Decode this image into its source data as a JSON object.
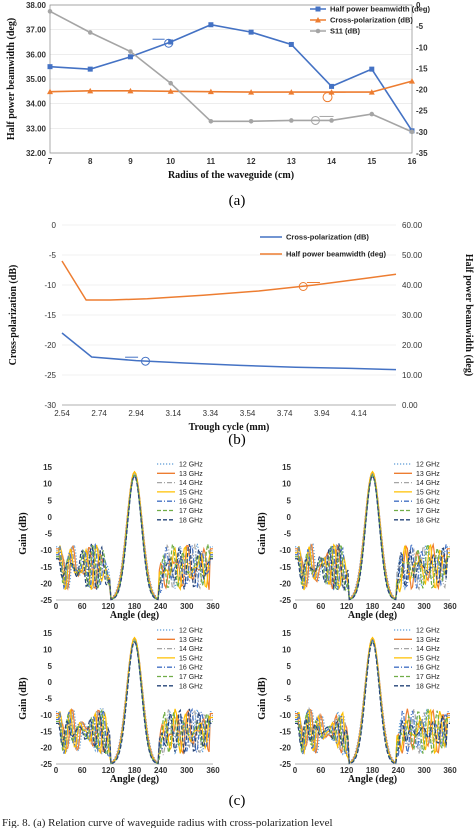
{
  "figure": {
    "panel_labels": [
      "(a)",
      "(b)",
      "(c)"
    ],
    "caption": "Fig. 8.   (a) Relation curve of waveguide radius with cross-polarization level"
  },
  "chart_data": [
    {
      "type": "line",
      "xlabel": "Radius of the waveguide (cm)",
      "ylabel": "Half power beamwidth (deg)",
      "x": [
        7,
        8,
        9,
        10,
        11,
        12,
        13,
        14,
        15,
        16
      ],
      "xticks": [
        "7",
        "8",
        "9",
        "10",
        "11",
        "12",
        "13",
        "14",
        "15",
        "16"
      ],
      "ylim": [
        32,
        38
      ],
      "yticks": [
        "32.00",
        "33.00",
        "34.00",
        "35.00",
        "36.00",
        "37.00",
        "38.00"
      ],
      "y2lim": [
        -35,
        0
      ],
      "y2ticks": [
        "0",
        "-5",
        "-10",
        "-15",
        "-20",
        "-25",
        "-30",
        "-35"
      ],
      "legend_position": "top-right",
      "series": [
        {
          "name": "Half power beamwidth (deg)",
          "axis": "left",
          "color": "#4472c4",
          "marker": "square",
          "values": [
            35.5,
            35.4,
            35.9,
            36.5,
            37.2,
            36.9,
            36.4,
            34.7,
            35.4,
            32.9
          ]
        },
        {
          "name": "Cross-polarization (dB)",
          "axis": "right",
          "color": "#ed7d31",
          "marker": "triangle",
          "values": [
            -20.5,
            -20.3,
            -20.3,
            -20.4,
            -20.5,
            -20.6,
            -20.6,
            -20.6,
            -20.6,
            -18.0
          ]
        },
        {
          "name": "S11 (dB)",
          "axis": "right",
          "color": "#a5a5a5",
          "marker": "circle",
          "values": [
            -1.5,
            -6.5,
            -11.0,
            -18.5,
            -27.5,
            -27.5,
            -27.3,
            -27.3,
            -25.8,
            -30.0
          ]
        }
      ]
    },
    {
      "type": "line",
      "xlabel": "Trough cycle (mm)",
      "ylabel": "Cross-polarization (dB)",
      "y2label": "Half power beamwidth (deg)",
      "xlim": [
        2.54,
        4.34
      ],
      "xticks": [
        "2.54",
        "2.74",
        "2.94",
        "3.14",
        "3.34",
        "3.54",
        "3.74",
        "3.94",
        "4.14"
      ],
      "ylim": [
        -30,
        0
      ],
      "yticks": [
        "0",
        "-5",
        "-10",
        "-15",
        "-20",
        "-25",
        "-30"
      ],
      "y2lim": [
        0,
        60
      ],
      "y2ticks": [
        "60.00",
        "50.00",
        "40.00",
        "30.00",
        "20.00",
        "10.00",
        "0.00"
      ],
      "legend_position": "top-right",
      "series": [
        {
          "name": "Cross-polarization (dB)",
          "axis": "left",
          "color": "#4472c4",
          "x": [
            2.54,
            2.7,
            2.94,
            3.2,
            3.5,
            3.8,
            4.1,
            4.34
          ],
          "values": [
            -18.0,
            -22.0,
            -22.6,
            -23.0,
            -23.4,
            -23.7,
            -23.9,
            -24.1
          ]
        },
        {
          "name": "Half power beamwidth (deg)",
          "axis": "right",
          "color": "#ed7d31",
          "x": [
            2.54,
            2.67,
            2.8,
            3.0,
            3.3,
            3.6,
            3.9,
            4.2,
            4.34
          ],
          "values": [
            48.0,
            35.0,
            35.0,
            35.4,
            36.6,
            38.0,
            40.0,
            42.4,
            43.6
          ]
        }
      ]
    },
    {
      "type": "line",
      "layout": "2x2 subplots",
      "xlabel": "Angle (deg)",
      "ylabel": "Gain (dB)",
      "xlim": [
        0,
        360
      ],
      "xticks": [
        "0",
        "60",
        "120",
        "180",
        "240",
        "300",
        "360"
      ],
      "ylim": [
        -25,
        15
      ],
      "yticks": [
        "15",
        "10",
        "5",
        "0",
        "-5",
        "-10",
        "-15",
        "-20",
        "-25"
      ],
      "legend_position": "top-right",
      "series": [
        {
          "name": "12 GHz",
          "color": "#5b9bd5",
          "dash": "dotted",
          "peak": 13.0,
          "width": 26
        },
        {
          "name": "13 GHz",
          "color": "#ed7d31",
          "dash": "solid",
          "peak": 13.5,
          "width": 25
        },
        {
          "name": "14 GHz",
          "color": "#a5a5a5",
          "dash": "dashdot",
          "peak": 13.2,
          "width": 24.5
        },
        {
          "name": "15 GHz",
          "color": "#ffc000",
          "dash": "solid",
          "peak": 13.6,
          "width": 24
        },
        {
          "name": "16 GHz",
          "color": "#4472c4",
          "dash": "dashdot",
          "peak": 12.8,
          "width": 23.5
        },
        {
          "name": "17 GHz",
          "color": "#70ad47",
          "dash": "dashed",
          "peak": 12.5,
          "width": 23
        },
        {
          "name": "18 GHz",
          "color": "#264478",
          "dash": "dashed",
          "peak": 12.3,
          "width": 22.5
        }
      ]
    }
  ]
}
